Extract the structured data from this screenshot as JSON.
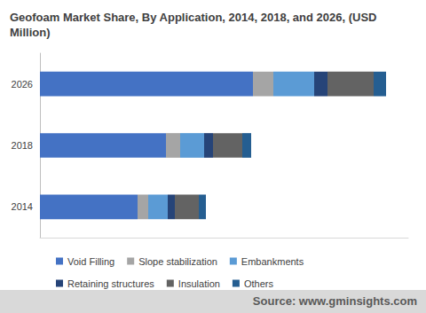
{
  "chart_data": {
    "type": "bar",
    "title": "Geofoam Market Share, By Application, 2014, 2018, and 2026, (USD Million)",
    "annotations": [
      "Source: www.gminsights.com"
    ],
    "orientation": "horizontal",
    "stacked": true,
    "grid": false,
    "legend": "bottom",
    "tick_labels": "y",
    "categories": [
      "2014",
      "2018",
      "2026"
    ],
    "xlim": [
      0,
      415
    ],
    "series": [
      {
        "name": "Void Filling",
        "color": "#4472c4",
        "values": [
          110,
          142,
          240
        ]
      },
      {
        "name": "Slope stabilization",
        "color": "#a5a5a5",
        "values": [
          12,
          16,
          23
        ]
      },
      {
        "name": "Embankments",
        "color": "#5b9bd5",
        "values": [
          22,
          27,
          46
        ]
      },
      {
        "name": "Retaining structures",
        "color": "#264478",
        "values": [
          8,
          10,
          15
        ]
      },
      {
        "name": "Insulation",
        "color": "#636363",
        "values": [
          27,
          33,
          52
        ]
      },
      {
        "name": "Others",
        "color": "#255e91",
        "values": [
          8,
          10,
          14
        ]
      }
    ]
  }
}
